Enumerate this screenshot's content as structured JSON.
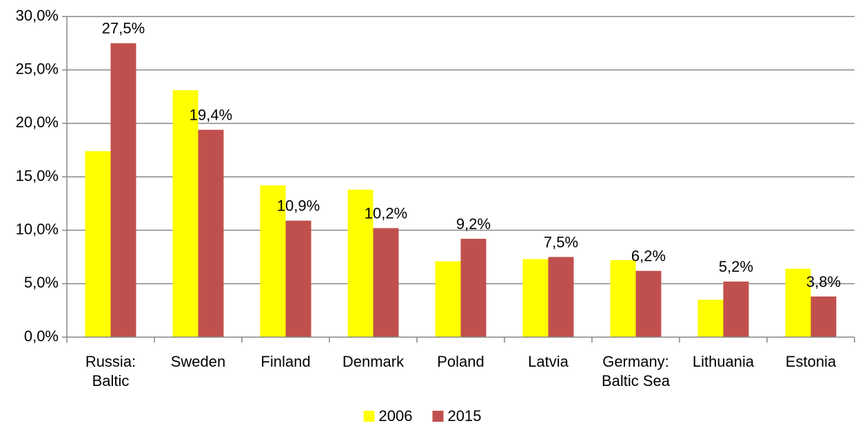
{
  "chart_data": {
    "type": "bar",
    "categories": [
      "Russia:\nBaltic",
      "Sweden",
      "Finland",
      "Denmark",
      "Poland",
      "Latvia",
      "Germany:\nBaltic Sea",
      "Lithuania",
      "Estonia"
    ],
    "series": [
      {
        "name": "2006",
        "color": "#ffff00",
        "values": [
          17.4,
          23.1,
          14.2,
          13.8,
          7.1,
          7.3,
          7.2,
          3.5,
          6.4
        ]
      },
      {
        "name": "2015",
        "color": "#c0504d",
        "values": [
          27.5,
          19.4,
          10.9,
          10.2,
          9.2,
          7.5,
          6.2,
          5.2,
          3.8
        ],
        "value_labels": [
          "27,5%",
          "19,4%",
          "10,9%",
          "10,2%",
          "9,2%",
          "7,5%",
          "6,2%",
          "5,2%",
          "3,8%"
        ]
      }
    ],
    "ylim": [
      0,
      30
    ],
    "yticks": [
      {
        "value": 0,
        "label": "0,0%"
      },
      {
        "value": 5,
        "label": "5,0%"
      },
      {
        "value": 10,
        "label": "10,0%"
      },
      {
        "value": 15,
        "label": "15,0%"
      },
      {
        "value": 20,
        "label": "20,0%"
      },
      {
        "value": 25,
        "label": "25,0%"
      },
      {
        "value": 30,
        "label": "30,0%"
      }
    ],
    "grid": true,
    "legend": "bottom"
  }
}
